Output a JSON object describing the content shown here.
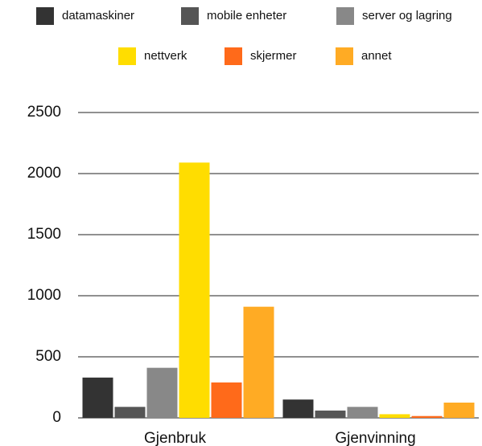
{
  "chart_data": {
    "type": "bar",
    "categories": [
      "Gjenbruk",
      "Gjenvinning"
    ],
    "series": [
      {
        "name": "datamaskiner",
        "color": "#333333",
        "values": [
          330,
          150
        ]
      },
      {
        "name": "mobile enheter",
        "color": "#555555",
        "values": [
          90,
          60
        ]
      },
      {
        "name": "server og lagring",
        "color": "#888888",
        "values": [
          410,
          90
        ]
      },
      {
        "name": "nettverk",
        "color": "#ffdd00",
        "values": [
          2090,
          30
        ]
      },
      {
        "name": "skjermer",
        "color": "#ff6a1a",
        "values": [
          290,
          15
        ]
      },
      {
        "name": "annet",
        "color": "#ffab24",
        "values": [
          910,
          125
        ]
      }
    ],
    "ylim": [
      0,
      2500
    ],
    "yticks": [
      0,
      500,
      1000,
      1500,
      2000,
      2500
    ],
    "grid": true,
    "legend": "top"
  }
}
